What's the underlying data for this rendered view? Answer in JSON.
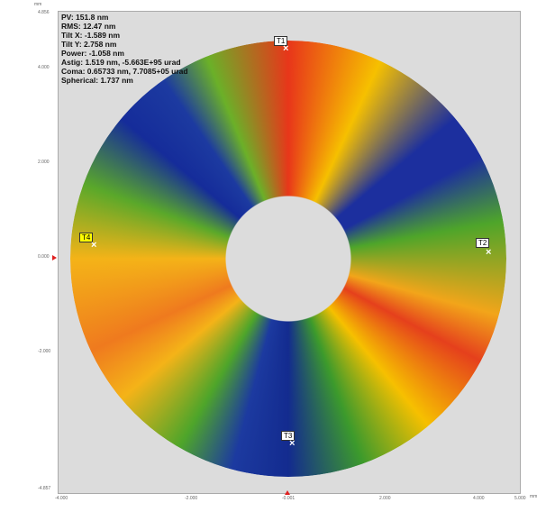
{
  "stats": [
    "PV: 151.8 nm",
    "RMS: 12.47 nm",
    "Tilt X: -1.589 nm",
    "Tilt Y: 2.758 nm",
    "Power: -1.058 nm",
    "Astig: 1.519 nm, -5.663E+95 urad",
    "Coma: 0.65733 nm, 7.7085+05 urad",
    "Spherical: 1.737 nm"
  ],
  "markers": [
    "T1",
    "T2",
    "T3",
    "T4"
  ],
  "axes": {
    "y_unit": "mm",
    "x_unit": "mm",
    "y_ticks": [
      "4.856",
      "4.000",
      "2.000",
      "0.000",
      "-2.000",
      "-4.857"
    ],
    "x_ticks": [
      "-4.000",
      "-2.000",
      "-0.001",
      "2.000",
      "4.000",
      "5.000"
    ]
  }
}
